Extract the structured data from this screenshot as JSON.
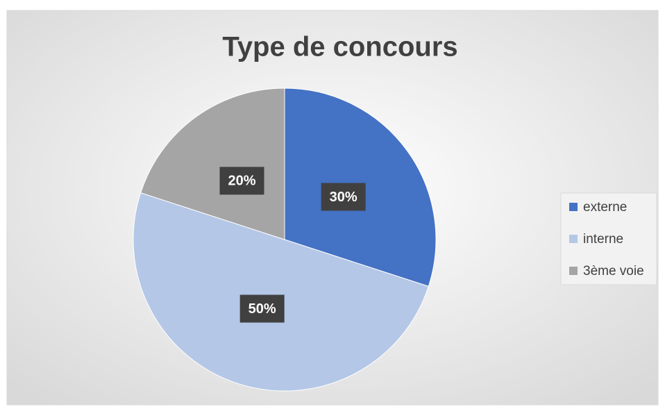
{
  "chart_data": {
    "type": "pie",
    "title": "Type de concours",
    "categories": [
      "externe",
      "interne",
      "3ème voie"
    ],
    "values": [
      30,
      50,
      20
    ],
    "value_labels": [
      "30%",
      "50%",
      "20%"
    ],
    "colors": [
      "#4472c4",
      "#b4c7e7",
      "#a5a5a5"
    ],
    "legend": "right"
  }
}
